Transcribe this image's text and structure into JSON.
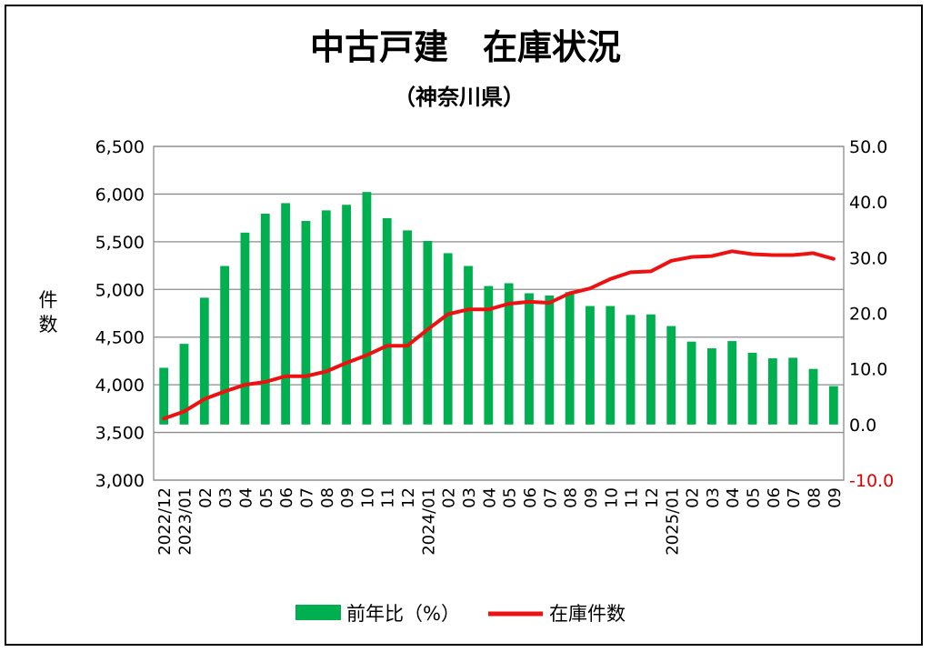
{
  "chart_data": {
    "type": "bar+line",
    "title": "中古戸建　在庫状況",
    "subtitle": "（神奈川県）",
    "ylabel_left": "件数",
    "categories": [
      "2022/12",
      "2023/01",
      "02",
      "03",
      "04",
      "05",
      "06",
      "07",
      "08",
      "09",
      "10",
      "11",
      "12",
      "2024/01",
      "02",
      "03",
      "04",
      "05",
      "06",
      "07",
      "08",
      "09",
      "10",
      "11",
      "12",
      "2025/01",
      "02",
      "03",
      "04",
      "05",
      "06",
      "07",
      "08",
      "09"
    ],
    "series": [
      {
        "name": "前年比（%）",
        "type": "bar",
        "axis": "right",
        "color": "#00b050",
        "values": [
          10.2,
          14.5,
          22.8,
          28.5,
          34.5,
          37.9,
          39.8,
          36.6,
          38.5,
          39.5,
          41.8,
          37.1,
          34.9,
          33.0,
          30.8,
          28.5,
          24.9,
          25.4,
          23.6,
          23.2,
          23.8,
          21.3,
          21.3,
          19.7,
          19.8,
          17.7,
          14.9,
          13.7,
          15.0,
          12.9,
          11.9,
          12.0,
          10.0,
          6.9
        ]
      },
      {
        "name": "在庫件数",
        "type": "line",
        "axis": "left",
        "color": "#ee1111",
        "values": [
          3645,
          3720,
          3850,
          3930,
          4000,
          4030,
          4090,
          4090,
          4140,
          4230,
          4310,
          4410,
          4410,
          4580,
          4740,
          4790,
          4790,
          4850,
          4870,
          4860,
          4960,
          5010,
          5110,
          5180,
          5190,
          5300,
          5340,
          5350,
          5400,
          5370,
          5360,
          5360,
          5380,
          5320
        ]
      }
    ],
    "y_left": {
      "min": 3000,
      "max": 6500,
      "ticks": [
        "3,000",
        "3,500",
        "4,000",
        "4,500",
        "5,000",
        "5,500",
        "6,000",
        "6,500"
      ]
    },
    "y_right": {
      "min": -10,
      "max": 50,
      "ticks": [
        "-10.0",
        "0.0",
        "10.0",
        "20.0",
        "30.0",
        "40.0",
        "50.0"
      ]
    },
    "grid": true,
    "legend_position": "bottom"
  },
  "colors": {
    "bar": "#00b050",
    "line": "#ee1111",
    "negative_tick": "#e00000"
  }
}
